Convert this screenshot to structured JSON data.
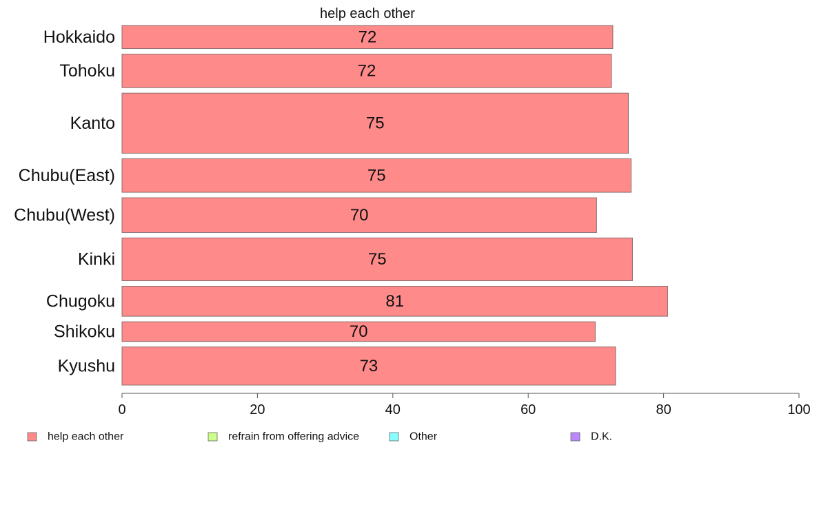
{
  "chart_data": {
    "type": "bar",
    "orientation": "horizontal",
    "title": "help each other",
    "categories": [
      "Hokkaido",
      "Tohoku",
      "Kanto",
      "Chubu(East)",
      "Chubu(West)",
      "Kinki",
      "Chugoku",
      "Shikoku",
      "Kyushu"
    ],
    "values": [
      72.5,
      72.3,
      74.8,
      75.2,
      70.1,
      75.4,
      80.6,
      69.9,
      72.9
    ],
    "value_labels": [
      "72",
      "72",
      "75",
      "75",
      "70",
      "75",
      "81",
      "70",
      "73"
    ],
    "relative_bar_widths": [
      1.0,
      1.45,
      2.6,
      1.45,
      1.5,
      1.85,
      1.3,
      0.85,
      1.65
    ],
    "xlim": [
      0,
      100
    ],
    "xticks": [
      "0",
      "20",
      "40",
      "60",
      "80",
      "100"
    ],
    "xlabel": "",
    "ylabel": "",
    "grid": false,
    "bar_color": "#ff8a8a",
    "legend_position": "bottom",
    "legend": [
      {
        "label": "help each other",
        "color": "#ff8a8a"
      },
      {
        "label": "refrain from offering advice",
        "color": "#ccff88"
      },
      {
        "label": "Other",
        "color": "#88ffff"
      },
      {
        "label": "D.K.",
        "color": "#bb88ff"
      }
    ]
  }
}
